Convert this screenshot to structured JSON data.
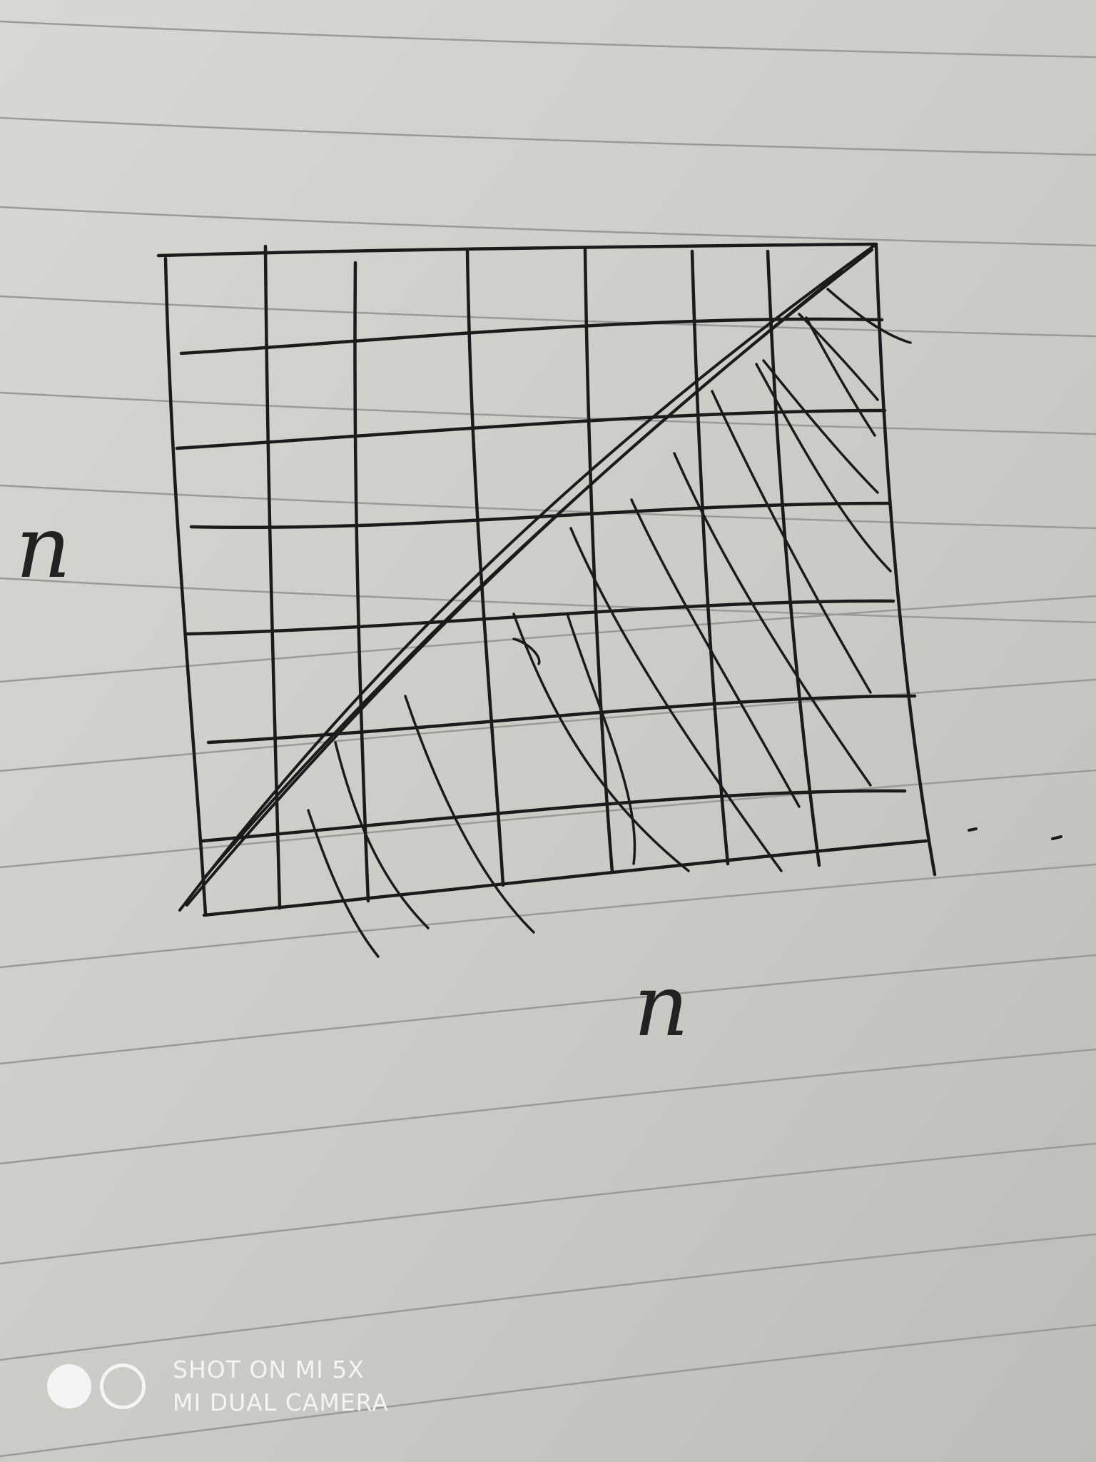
{
  "diagram": {
    "left_label": "n",
    "bottom_label": "n"
  },
  "watermark": {
    "line1": "SHOT ON MI 5X",
    "line2": "MI DUAL CAMERA",
    "icon": "dual-circle-icon"
  },
  "colors": {
    "paper": "#cfcfcb",
    "ink": "#1b1b1b",
    "watermark": "#f4f4f4"
  }
}
